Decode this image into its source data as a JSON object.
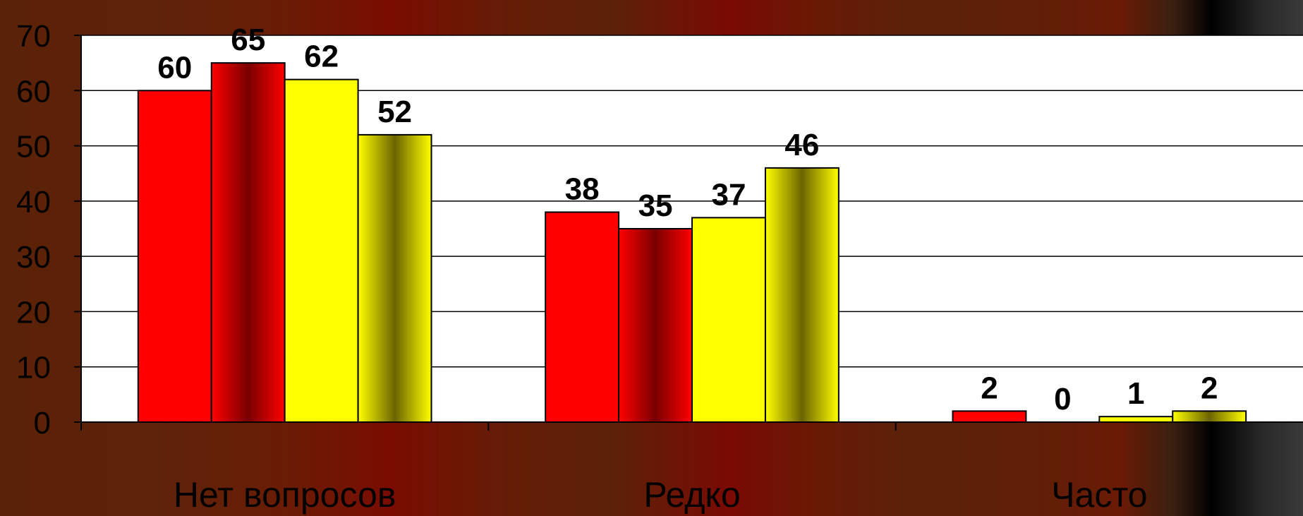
{
  "chart_data": {
    "type": "bar",
    "categories": [
      "Нет вопросов",
      "Редко",
      "Часто"
    ],
    "series": [
      {
        "values": [
          60,
          38,
          2
        ],
        "color": "#ff0000",
        "style": "solid"
      },
      {
        "values": [
          65,
          35,
          0
        ],
        "color": "#ff0000",
        "style": "gradient-dark-red"
      },
      {
        "values": [
          62,
          37,
          1
        ],
        "color": "#ffff00",
        "style": "solid"
      },
      {
        "values": [
          52,
          46,
          2
        ],
        "color": "#ffff00",
        "style": "gradient-dark-yellow"
      }
    ],
    "ylim": [
      0,
      70
    ],
    "yticks": [
      0,
      10,
      20,
      30,
      40,
      50,
      60,
      70
    ],
    "grid": true,
    "legend": "none",
    "plot_background": "#ffffff"
  }
}
